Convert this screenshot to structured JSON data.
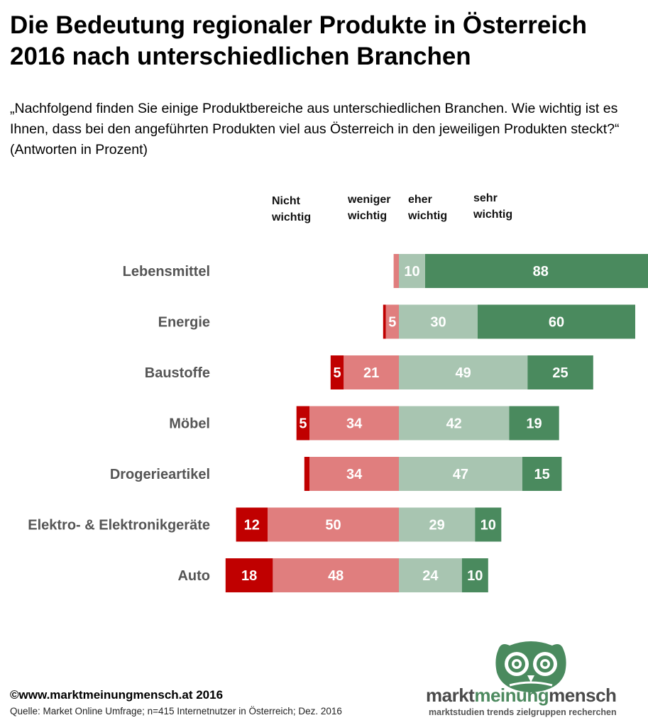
{
  "header": {
    "title_line1": "Die Bedeutung regionaler Produkte in Österreich",
    "title_line2": "2016 nach unterschiedlichen Branchen",
    "subtitle": "„Nachfolgend finden Sie einige Produktbereiche aus unterschiedlichen Branchen. Wie wichtig ist es Ihnen, dass bei den angeführten Produkten viel aus Österreich in den jeweiligen Produkten steckt?“ (Antworten in Prozent)"
  },
  "columns": {
    "nicht": [
      "Nicht",
      "wichtig"
    ],
    "weniger": [
      "weniger",
      "wichtig"
    ],
    "eher": [
      "eher",
      "wichtig"
    ],
    "sehr": [
      "sehr",
      "wichtig"
    ]
  },
  "colors": {
    "nicht": "#c00000",
    "weniger": "#e07e7e",
    "eher": "#a8c5b1",
    "sehr": "#4a8a5e",
    "label": "#555555"
  },
  "chart_data": {
    "type": "bar",
    "orientation": "horizontal-diverging",
    "categories": [
      "Lebensmittel",
      "Energie",
      "Baustoffe",
      "Möbel",
      "Drogerieartikel",
      "Elektro- & Elektronikgeräte",
      "Auto"
    ],
    "series": [
      {
        "name": "Nicht wichtig",
        "values": [
          0,
          1,
          5,
          5,
          2,
          12,
          18
        ]
      },
      {
        "name": "weniger wichtig",
        "values": [
          2,
          5,
          21,
          34,
          34,
          50,
          48
        ]
      },
      {
        "name": "eher wichtig",
        "values": [
          10,
          30,
          49,
          42,
          47,
          29,
          24
        ]
      },
      {
        "name": "sehr wichtig",
        "values": [
          88,
          60,
          25,
          19,
          15,
          10,
          10
        ]
      }
    ],
    "visible_labels": [
      [
        "",
        "",
        "10",
        "88"
      ],
      [
        "",
        "5",
        "30",
        "60"
      ],
      [
        "5",
        "21",
        "49",
        "25"
      ],
      [
        "5",
        "34",
        "42",
        "19"
      ],
      [
        "",
        "34",
        "47",
        "15"
      ],
      [
        "12",
        "50",
        "29",
        "10"
      ],
      [
        "18",
        "48",
        "24",
        "10"
      ]
    ]
  },
  "footer": {
    "copyright": "©www.marktmeinungmensch.at 2016",
    "source": "Quelle: Market Online Umfrage; n=415 Internetnutzer in Österreich; Dez. 2016"
  },
  "logo": {
    "word1": "markt",
    "word2": "meinung",
    "word3": "mensch",
    "tagline": "marktstudien trends zielgruppen recherchen"
  }
}
